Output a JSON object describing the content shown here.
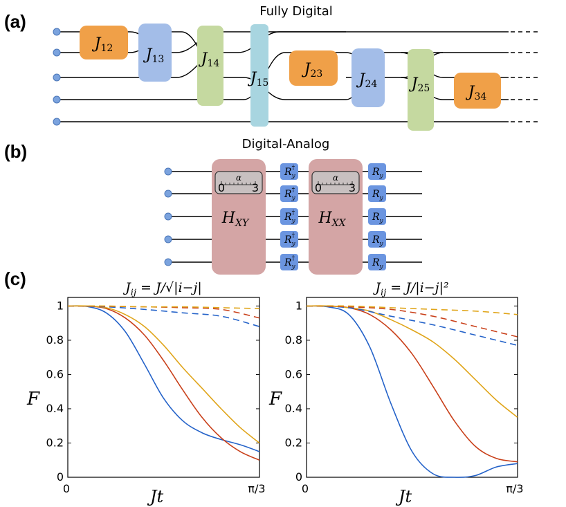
{
  "panel_a": {
    "label": "(a)",
    "title": "Fully Digital",
    "gates": [
      {
        "sym": "J",
        "sub": "12",
        "color": "#F0A048"
      },
      {
        "sym": "J",
        "sub": "13",
        "color": "#A3BDE8"
      },
      {
        "sym": "J",
        "sub": "14",
        "color": "#C5D9A0"
      },
      {
        "sym": "J",
        "sub": "15",
        "color": "#A8D5E0"
      },
      {
        "sym": "J",
        "sub": "23",
        "color": "#F0A048"
      },
      {
        "sym": "J",
        "sub": "24",
        "color": "#A3BDE8"
      },
      {
        "sym": "J",
        "sub": "25",
        "color": "#C5D9A0"
      },
      {
        "sym": "J",
        "sub": "34",
        "color": "#F0A048"
      }
    ]
  },
  "panel_b": {
    "label": "(b)",
    "title": "Digital-Analog",
    "analog_blocks": [
      {
        "sym": "H",
        "sub": "XY",
        "color": "#D4A5A5"
      },
      {
        "sym": "H",
        "sub": "XX",
        "color": "#D4A5A5"
      }
    ],
    "knob": {
      "sym": "α",
      "min": "0",
      "max": "3"
    },
    "rotation_dagger": {
      "sym": "R",
      "sub": "y",
      "sup": "†"
    },
    "rotation": {
      "sym": "R",
      "sub": "y"
    },
    "rotation_color": "#6B95E0"
  },
  "panel_c": {
    "label": "(c)",
    "ylabel": "F",
    "xlabel": "Jt",
    "chart_data": [
      {
        "type": "line",
        "title_pre": "J",
        "title_sub": "ij",
        "title_post": " = J/√|i−j|",
        "xlabel": "Jt",
        "ylabel": "F",
        "xlim": [
          0,
          1.0472
        ],
        "ylim": [
          0,
          1.05
        ],
        "xticks": [
          "0",
          "π/3"
        ],
        "yticks": [
          "0",
          "0.2",
          "0.4",
          "0.6",
          "0.8",
          "1"
        ],
        "series": [
          {
            "name": "blue solid",
            "color": "#2563C9",
            "dashed": false,
            "x": [
              0,
              0.105,
              0.21,
              0.314,
              0.419,
              0.524,
              0.628,
              0.733,
              0.838,
              0.942,
              1.047
            ],
            "y": [
              1.0,
              0.997,
              0.96,
              0.85,
              0.66,
              0.46,
              0.33,
              0.26,
              0.22,
              0.19,
              0.15
            ]
          },
          {
            "name": "red solid",
            "color": "#C9401A",
            "dashed": false,
            "x": [
              0,
              0.105,
              0.21,
              0.314,
              0.419,
              0.524,
              0.628,
              0.733,
              0.838,
              0.942,
              1.047
            ],
            "y": [
              1.0,
              0.999,
              0.985,
              0.93,
              0.83,
              0.68,
              0.51,
              0.35,
              0.23,
              0.15,
              0.1
            ]
          },
          {
            "name": "yellow solid",
            "color": "#E0A51A",
            "dashed": false,
            "x": [
              0,
              0.105,
              0.21,
              0.314,
              0.419,
              0.524,
              0.628,
              0.733,
              0.838,
              0.942,
              1.047
            ],
            "y": [
              1.0,
              1.0,
              0.99,
              0.95,
              0.88,
              0.77,
              0.64,
              0.52,
              0.4,
              0.29,
              0.2
            ]
          },
          {
            "name": "blue dashed",
            "color": "#2563C9",
            "dashed": true,
            "x": [
              0,
              0.209,
              0.419,
              0.628,
              0.838,
              1.047
            ],
            "y": [
              1.0,
              0.995,
              0.98,
              0.96,
              0.94,
              0.88
            ]
          },
          {
            "name": "red dashed",
            "color": "#C9401A",
            "dashed": true,
            "x": [
              0,
              0.209,
              0.419,
              0.628,
              0.838,
              1.047
            ],
            "y": [
              1.0,
              0.998,
              0.995,
              0.99,
              0.98,
              0.93
            ]
          },
          {
            "name": "yellow dashed",
            "color": "#E0A51A",
            "dashed": true,
            "x": [
              0,
              0.209,
              0.419,
              0.628,
              0.838,
              1.047
            ],
            "y": [
              1.0,
              1.0,
              0.995,
              0.995,
              0.99,
              0.985
            ]
          }
        ]
      },
      {
        "type": "line",
        "title_pre": "J",
        "title_sub": "ij",
        "title_post": " = J/|i−j|²",
        "xlabel": "Jt",
        "ylabel": "F",
        "xlim": [
          0,
          1.0472
        ],
        "ylim": [
          0,
          1.05
        ],
        "xticks": [
          "0",
          "π/3"
        ],
        "yticks": [
          "0",
          "0.2",
          "0.4",
          "0.6",
          "0.8",
          "1"
        ],
        "series": [
          {
            "name": "blue solid",
            "color": "#2563C9",
            "dashed": false,
            "x": [
              0,
              0.105,
              0.21,
              0.314,
              0.419,
              0.524,
              0.628,
              0.733,
              0.838,
              0.942,
              1.047
            ],
            "y": [
              1.0,
              0.995,
              0.95,
              0.76,
              0.43,
              0.15,
              0.02,
              0.0,
              0.01,
              0.06,
              0.08
            ]
          },
          {
            "name": "red solid",
            "color": "#C9401A",
            "dashed": false,
            "x": [
              0,
              0.105,
              0.21,
              0.314,
              0.419,
              0.524,
              0.628,
              0.733,
              0.838,
              0.942,
              1.047
            ],
            "y": [
              1.0,
              1.0,
              0.99,
              0.95,
              0.86,
              0.72,
              0.53,
              0.33,
              0.18,
              0.11,
              0.09
            ]
          },
          {
            "name": "yellow solid",
            "color": "#E0A51A",
            "dashed": false,
            "x": [
              0,
              0.105,
              0.21,
              0.314,
              0.419,
              0.524,
              0.628,
              0.733,
              0.838,
              0.942,
              1.047
            ],
            "y": [
              1.0,
              1.0,
              0.99,
              0.97,
              0.92,
              0.86,
              0.79,
              0.69,
              0.57,
              0.45,
              0.35
            ]
          },
          {
            "name": "blue dashed",
            "color": "#2563C9",
            "dashed": true,
            "x": [
              0,
              0.209,
              0.419,
              0.628,
              0.838,
              1.047
            ],
            "y": [
              1.0,
              0.99,
              0.94,
              0.89,
              0.83,
              0.77
            ]
          },
          {
            "name": "red dashed",
            "color": "#C9401A",
            "dashed": true,
            "x": [
              0,
              0.209,
              0.419,
              0.628,
              0.838,
              1.047
            ],
            "y": [
              1.0,
              0.995,
              0.98,
              0.94,
              0.88,
              0.82
            ]
          },
          {
            "name": "yellow dashed",
            "color": "#E0A51A",
            "dashed": true,
            "x": [
              0,
              0.209,
              0.419,
              0.628,
              0.838,
              1.047
            ],
            "y": [
              1.0,
              1.0,
              0.99,
              0.98,
              0.97,
              0.95
            ]
          }
        ]
      }
    ]
  }
}
